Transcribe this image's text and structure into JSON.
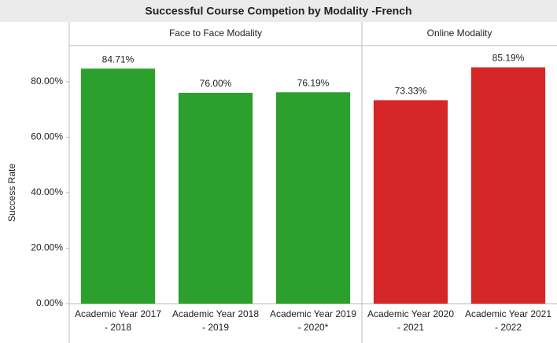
{
  "chart_data": {
    "type": "bar",
    "title": "Successful Course Competion by Modality -French",
    "y_label": "Success Rate",
    "ylim": [
      0,
      93
    ],
    "yticks": [
      {
        "value": 0,
        "label": "0.00%"
      },
      {
        "value": 20,
        "label": "20.00%"
      },
      {
        "value": 40,
        "label": "40.00%"
      },
      {
        "value": 60,
        "label": "60.00%"
      },
      {
        "value": 80,
        "label": "80.00%"
      }
    ],
    "panels": [
      {
        "name": "Face to Face Modality",
        "color": "#2ca02c",
        "categories": [
          [
            "Academic Year 2017",
            "- 2018"
          ],
          [
            "Academic Year 2018",
            "- 2019"
          ],
          [
            "Academic Year 2019",
            "- 2020*"
          ]
        ],
        "values": [
          84.71,
          76.0,
          76.19
        ],
        "value_labels": [
          "84.71%",
          "76.00%",
          "76.19%"
        ]
      },
      {
        "name": "Online Modality",
        "color": "#d62728",
        "categories": [
          [
            "Academic Year 2020",
            "- 2021"
          ],
          [
            "Academic Year 2021",
            "- 2022"
          ]
        ],
        "values": [
          73.33,
          85.19
        ],
        "value_labels": [
          "73.33%",
          "85.19%"
        ]
      }
    ]
  }
}
